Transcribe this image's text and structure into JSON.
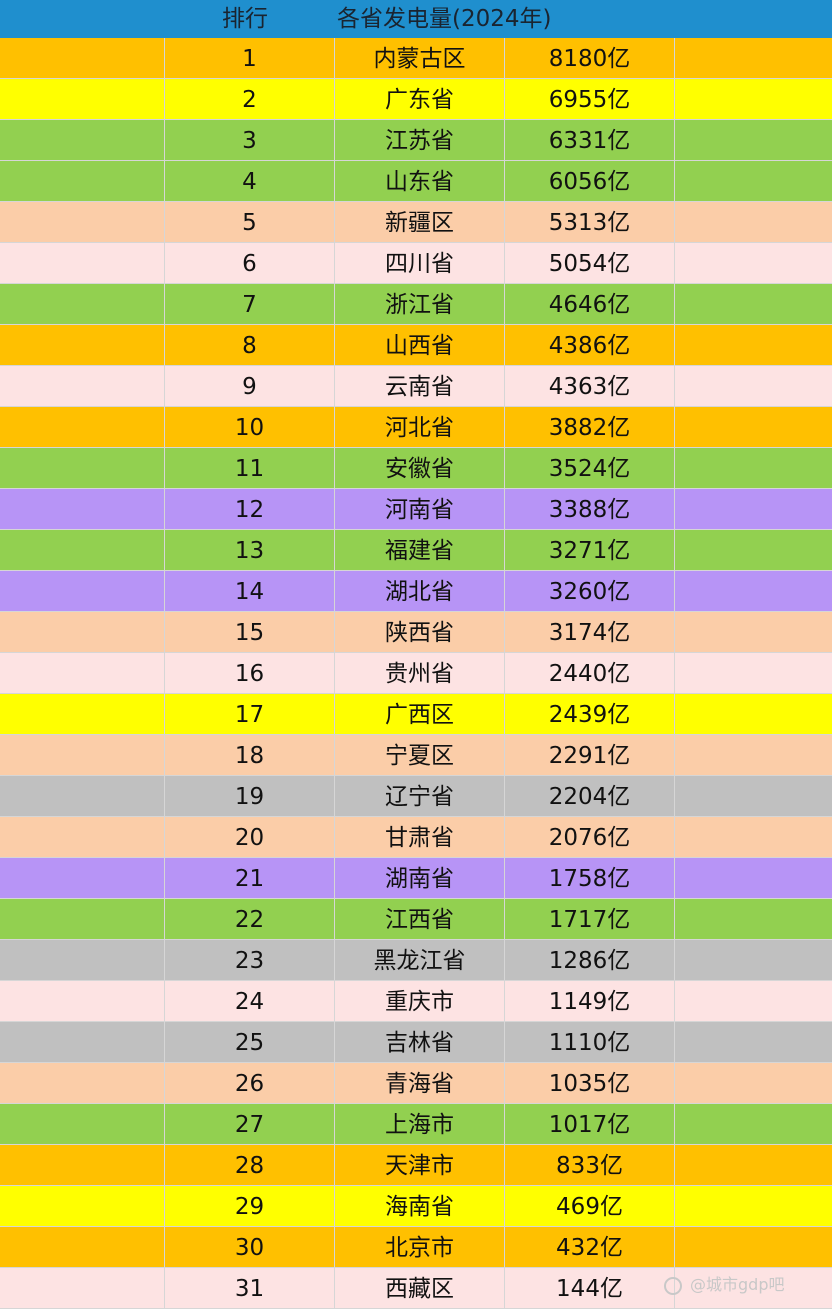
{
  "header": {
    "rank_label": "排行",
    "title": "各省发电量(2024年)",
    "color": "#1f8fce"
  },
  "colors": {
    "orange": "#ffc000",
    "yellow": "#ffff00",
    "green": "#92d050",
    "peach": "#fbcda8",
    "pink": "#fde3e3",
    "purple": "#b794f6",
    "gray": "#c0c0c0"
  },
  "rows": [
    {
      "rank": "1",
      "region": "内蒙古区",
      "value": "8180亿",
      "color": "orange"
    },
    {
      "rank": "2",
      "region": "广东省",
      "value": "6955亿",
      "color": "yellow"
    },
    {
      "rank": "3",
      "region": "江苏省",
      "value": "6331亿",
      "color": "green"
    },
    {
      "rank": "4",
      "region": "山东省",
      "value": "6056亿",
      "color": "green"
    },
    {
      "rank": "5",
      "region": "新疆区",
      "value": "5313亿",
      "color": "peach"
    },
    {
      "rank": "6",
      "region": "四川省",
      "value": "5054亿",
      "color": "pink"
    },
    {
      "rank": "7",
      "region": "浙江省",
      "value": "4646亿",
      "color": "green"
    },
    {
      "rank": "8",
      "region": "山西省",
      "value": "4386亿",
      "color": "orange"
    },
    {
      "rank": "9",
      "region": "云南省",
      "value": "4363亿",
      "color": "pink"
    },
    {
      "rank": "10",
      "region": "河北省",
      "value": "3882亿",
      "color": "orange"
    },
    {
      "rank": "11",
      "region": "安徽省",
      "value": "3524亿",
      "color": "green"
    },
    {
      "rank": "12",
      "region": "河南省",
      "value": "3388亿",
      "color": "purple"
    },
    {
      "rank": "13",
      "region": "福建省",
      "value": "3271亿",
      "color": "green"
    },
    {
      "rank": "14",
      "region": "湖北省",
      "value": "3260亿",
      "color": "purple"
    },
    {
      "rank": "15",
      "region": "陕西省",
      "value": "3174亿",
      "color": "peach"
    },
    {
      "rank": "16",
      "region": "贵州省",
      "value": "2440亿",
      "color": "pink"
    },
    {
      "rank": "17",
      "region": "广西区",
      "value": "2439亿",
      "color": "yellow"
    },
    {
      "rank": "18",
      "region": "宁夏区",
      "value": "2291亿",
      "color": "peach"
    },
    {
      "rank": "19",
      "region": "辽宁省",
      "value": "2204亿",
      "color": "gray"
    },
    {
      "rank": "20",
      "region": "甘肃省",
      "value": "2076亿",
      "color": "peach"
    },
    {
      "rank": "21",
      "region": "湖南省",
      "value": "1758亿",
      "color": "purple"
    },
    {
      "rank": "22",
      "region": "江西省",
      "value": "1717亿",
      "color": "green"
    },
    {
      "rank": "23",
      "region": "黑龙江省",
      "value": "1286亿",
      "color": "gray"
    },
    {
      "rank": "24",
      "region": "重庆市",
      "value": "1149亿",
      "color": "pink"
    },
    {
      "rank": "25",
      "region": "吉林省",
      "value": "1110亿",
      "color": "gray"
    },
    {
      "rank": "26",
      "region": "青海省",
      "value": "1035亿",
      "color": "peach"
    },
    {
      "rank": "27",
      "region": "上海市",
      "value": "1017亿",
      "color": "green"
    },
    {
      "rank": "28",
      "region": "天津市",
      "value": "833亿",
      "color": "orange"
    },
    {
      "rank": "29",
      "region": "海南省",
      "value": "469亿",
      "color": "yellow"
    },
    {
      "rank": "30",
      "region": "北京市",
      "value": "432亿",
      "color": "orange"
    },
    {
      "rank": "31",
      "region": "西藏区",
      "value": "144亿",
      "color": "pink"
    }
  ],
  "watermark": {
    "text": "@城市gdp吧",
    "icon": "chat-bubble-icon"
  }
}
